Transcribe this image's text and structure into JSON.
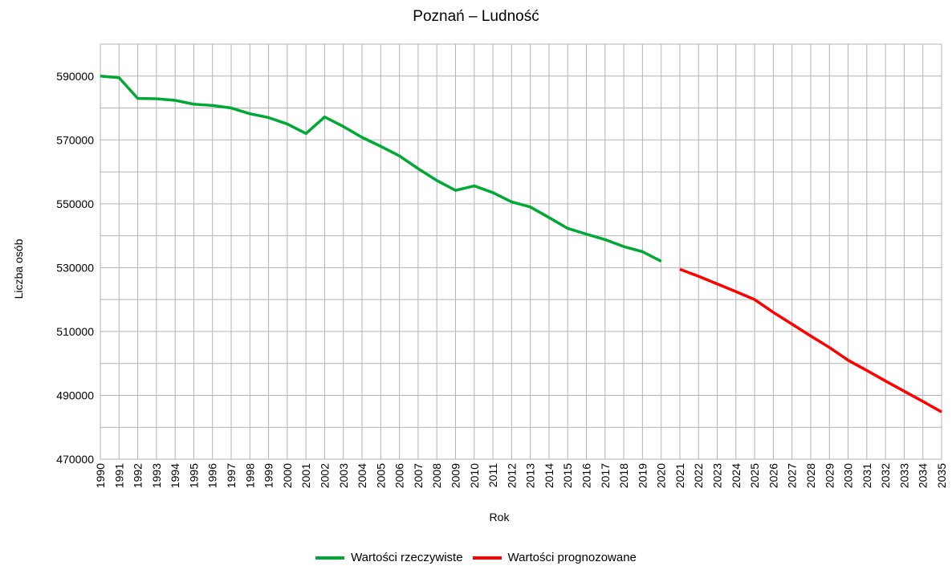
{
  "chart_data": {
    "type": "line",
    "title": "Poznań – Ludność",
    "xlabel": "Rok",
    "ylabel": "Liczba osób",
    "ylim": [
      470000,
      600000
    ],
    "y_ticks": [
      "470000",
      "490000",
      "510000",
      "530000",
      "550000",
      "570000",
      "590000"
    ],
    "categories": [
      "1990",
      "1991",
      "1992",
      "1993",
      "1994",
      "1995",
      "1996",
      "1997",
      "1998",
      "1999",
      "2000",
      "2001",
      "2002",
      "2003",
      "2004",
      "2005",
      "2006",
      "2007",
      "2008",
      "2009",
      "2010",
      "2011",
      "2012",
      "2013",
      "2014",
      "2015",
      "2016",
      "2017",
      "2018",
      "2019",
      "2020",
      "2021",
      "2022",
      "2023",
      "2024",
      "2025",
      "2026",
      "2027",
      "2028",
      "2029",
      "2030",
      "2031",
      "2032",
      "2033",
      "2034",
      "2035"
    ],
    "grid": true,
    "legend_position": "bottom",
    "series": [
      {
        "name": "Wartości rzeczywiste",
        "color": "#00a933",
        "x": [
          "1990",
          "1991",
          "1992",
          "1993",
          "1994",
          "1995",
          "1996",
          "1997",
          "1998",
          "1999",
          "2000",
          "2001",
          "2002",
          "2003",
          "2004",
          "2005",
          "2006",
          "2007",
          "2008",
          "2009",
          "2010",
          "2011",
          "2012",
          "2013",
          "2014",
          "2015",
          "2016",
          "2017",
          "2018",
          "2019",
          "2020"
        ],
        "values": [
          590000,
          589500,
          583000,
          582900,
          582400,
          581200,
          580800,
          580000,
          578200,
          577000,
          575000,
          572000,
          577200,
          574200,
          570800,
          568000,
          565000,
          561000,
          557300,
          554200,
          555600,
          553500,
          550600,
          549000,
          545700,
          542300,
          540500,
          538800,
          536600,
          535000,
          532000
        ]
      },
      {
        "name": "Wartości prognozowane",
        "color": "#ff0000",
        "x": [
          "2021",
          "2022",
          "2023",
          "2024",
          "2025",
          "2026",
          "2027",
          "2028",
          "2029",
          "2030",
          "2031",
          "2032",
          "2033",
          "2034",
          "2035"
        ],
        "values": [
          529500,
          527300,
          524900,
          522500,
          520000,
          516000,
          512300,
          508600,
          505000,
          501000,
          497800,
          494500,
          491300,
          488100,
          484800
        ]
      }
    ]
  }
}
